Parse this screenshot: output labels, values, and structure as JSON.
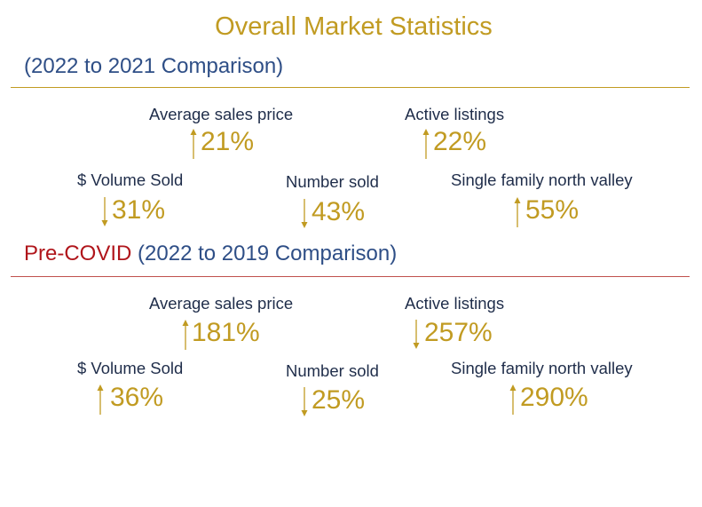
{
  "title": "Overall Market Statistics",
  "section1": {
    "heading": "(2022 to 2021 Comparison)",
    "stats": [
      {
        "label": "Average sales price",
        "value": "21%",
        "direction": "up"
      },
      {
        "label": "Active listings",
        "value": "22%",
        "direction": "up"
      },
      {
        "label": "$ Volume Sold",
        "value": "31%",
        "direction": "down"
      },
      {
        "label": "Number sold",
        "value": "43%",
        "direction": "down"
      },
      {
        "label": "Single family north valley",
        "value": "55%",
        "direction": "up"
      }
    ]
  },
  "section2": {
    "heading_prefix": "Pre-COVID",
    "heading": "(2022 to 2019 Comparison)",
    "stats": [
      {
        "label": "Average sales price",
        "value": "181%",
        "direction": "up"
      },
      {
        "label": "Active listings",
        "value": "257%",
        "direction": "down"
      },
      {
        "label": "$ Volume Sold",
        "value": "36%",
        "direction": "up"
      },
      {
        "label": "Number sold",
        "value": "25%",
        "direction": "down"
      },
      {
        "label": "Single family north valley",
        "value": "290%",
        "direction": "up"
      }
    ]
  },
  "colors": {
    "gold": "#C19B22",
    "blue": "#2E4E86",
    "red": "#B0151B",
    "label": "#1F2D4A"
  }
}
